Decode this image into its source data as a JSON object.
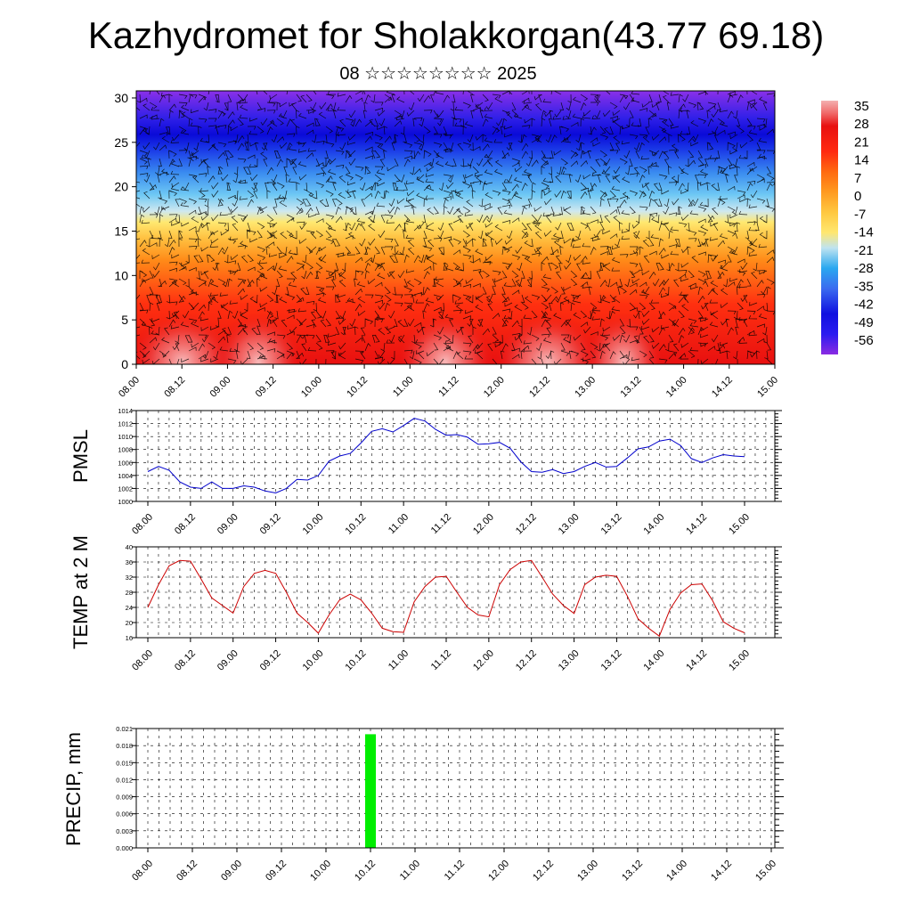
{
  "header": {
    "title": "Kazhydromet for Sholakkorgan(43.77 69.18)",
    "subtitle": "08 ☆☆☆☆☆☆☆☆ 2025"
  },
  "chart_data": [
    {
      "type": "heatmap",
      "description_of_field": "vertical cross-section of temperature with wind barbs",
      "x_tick_labels": [
        "08.00",
        "08.12",
        "09.00",
        "09.12",
        "10.00",
        "10.12",
        "11.00",
        "11.12",
        "12.00",
        "12.12",
        "13.00",
        "13.12",
        "14.00",
        "14.12",
        "15.00"
      ],
      "y_ticks": [
        0,
        5,
        10,
        15,
        20,
        25,
        30
      ],
      "ylim": [
        0,
        30.8
      ],
      "colorbar_labels": [
        "35",
        "28",
        "21",
        "14",
        "7",
        "0",
        "-7",
        "-14",
        "-21",
        "-28",
        "-35",
        "-42",
        "-49",
        "-56"
      ],
      "colorbar_range": [
        -60,
        38
      ],
      "colormap": [
        "#8a2be2",
        "#2b1cf0",
        "#1010e0",
        "#3a6bf0",
        "#2aa8f0",
        "#bfe3f0",
        "#ffe770",
        "#ffc840",
        "#ff9a20",
        "#ff6a10",
        "#ff2a10",
        "#e81010",
        "#f06868",
        "#f4b0b0"
      ]
    },
    {
      "type": "line",
      "ylabel": "PMSL",
      "x_tick_labels": [
        "08.00",
        "08.12",
        "09.00",
        "09.12",
        "10.00",
        "10.12",
        "11.00",
        "11.12",
        "12.00",
        "12.12",
        "13.00",
        "13.12",
        "14.00",
        "14.12",
        "15.00"
      ],
      "y_ticks": [
        "1000",
        "1002",
        "1004",
        "1006",
        "1008",
        "1010",
        "1012",
        "1014"
      ],
      "ylim": [
        1000,
        1014
      ],
      "color": "#0000cc",
      "values": [
        1004.6,
        1005.4,
        1004.8,
        1003.0,
        1002.2,
        1002.0,
        1003.0,
        1002.0,
        1002.0,
        1002.4,
        1002.2,
        1001.6,
        1001.3,
        1002.0,
        1003.4,
        1003.3,
        1004.0,
        1006.2,
        1007.0,
        1007.4,
        1009.0,
        1010.8,
        1011.2,
        1010.7,
        1011.7,
        1012.8,
        1012.4,
        1011.1,
        1010.2,
        1010.3,
        1009.9,
        1008.8,
        1008.9,
        1009.1,
        1008.2,
        1006.1,
        1004.6,
        1004.5,
        1004.9,
        1004.3,
        1004.6,
        1005.4,
        1006.0,
        1005.3,
        1005.4,
        1006.7,
        1008.1,
        1008.4,
        1009.3,
        1009.6,
        1008.6,
        1006.6,
        1006.0,
        1006.7,
        1007.2,
        1007.0,
        1006.9
      ]
    },
    {
      "type": "line",
      "ylabel": "TEMP at 2 M",
      "x_tick_labels": [
        "08.00",
        "08.12",
        "09.00",
        "09.12",
        "10.00",
        "10.12",
        "11.00",
        "11.12",
        "12.00",
        "12.12",
        "13.00",
        "13.12",
        "14.00",
        "14.12",
        "15.00"
      ],
      "y_ticks": [
        "16",
        "20",
        "24",
        "28",
        "32",
        "36",
        "40"
      ],
      "ylim": [
        16,
        40
      ],
      "color": "#cc0000",
      "values": [
        24.0,
        30.0,
        35.0,
        36.4,
        36.2,
        31.5,
        26.5,
        24.5,
        22.5,
        29.5,
        33.0,
        33.8,
        33.0,
        28.0,
        22.5,
        20.0,
        17.2,
        22.0,
        26.0,
        27.5,
        26.0,
        22.5,
        18.5,
        17.6,
        17.4,
        25.5,
        29.5,
        32.0,
        32.2,
        28.0,
        24.0,
        22.0,
        21.5,
        30.0,
        34.0,
        36.0,
        36.4,
        32.0,
        27.5,
        24.5,
        22.4,
        30.0,
        32.0,
        32.5,
        32.2,
        27.0,
        21.0,
        18.5,
        16.4,
        23.5,
        27.8,
        30.0,
        30.2,
        25.8,
        20.2,
        18.5,
        17.3
      ]
    },
    {
      "type": "bar",
      "ylabel": "PRECIP, mm",
      "x_tick_labels": [
        "08.00",
        "08.12",
        "09.00",
        "09.12",
        "10.00",
        "10.12",
        "11.00",
        "11.12",
        "12.00",
        "12.12",
        "13.00",
        "13.12",
        "14.00",
        "14.12",
        "15.00"
      ],
      "y_ticks": [
        "0.000",
        "0.003",
        "0.006",
        "0.009",
        "0.012",
        "0.015",
        "0.018",
        "0.021"
      ],
      "ylim": [
        0,
        0.021
      ],
      "color": "#00ee00",
      "bars": [
        {
          "x_index": 20,
          "value": 0.02
        }
      ]
    }
  ]
}
